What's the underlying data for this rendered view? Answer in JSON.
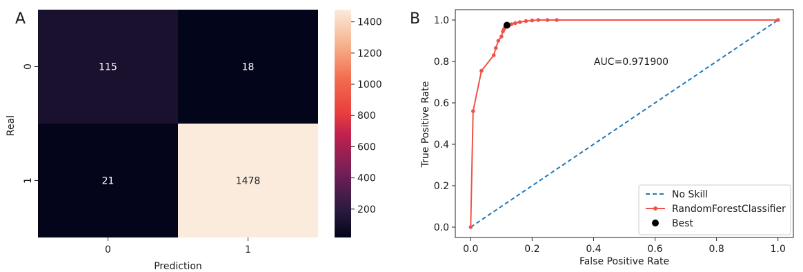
{
  "panels": {
    "a_label": "A",
    "b_label": "B"
  },
  "chart_data": [
    {
      "type": "heatmap",
      "xlabel": "Prediction",
      "ylabel": "Real",
      "x_categories": [
        "0",
        "1"
      ],
      "y_categories": [
        "0",
        "1"
      ],
      "values": [
        [
          115,
          18
        ],
        [
          21,
          1478
        ]
      ],
      "colorbar": {
        "min": 18,
        "max": 1478,
        "ticks": [
          200,
          400,
          600,
          800,
          1000,
          1200,
          1400
        ],
        "tick_labels": [
          "200",
          "400",
          "600",
          "800",
          "1000",
          "1200",
          "1400"
        ]
      },
      "colormap": "rocket",
      "colors": {
        "low": "#03051a",
        "high": "#faebdd"
      }
    },
    {
      "type": "line",
      "xlabel": "False Positive Rate",
      "ylabel": "True Positive Rate",
      "xlim": [
        -0.05,
        1.05
      ],
      "ylim": [
        -0.05,
        1.05
      ],
      "x_ticks": [
        0.0,
        0.2,
        0.4,
        0.6,
        0.8,
        1.0
      ],
      "x_tick_labels": [
        "0.0",
        "0.2",
        "0.4",
        "0.6",
        "0.8",
        "1.0"
      ],
      "y_ticks": [
        0.0,
        0.2,
        0.4,
        0.6,
        0.8,
        1.0
      ],
      "y_tick_labels": [
        "0.0",
        "0.2",
        "0.4",
        "0.6",
        "0.8",
        "1.0"
      ],
      "annotation": "AUC=0.971900",
      "legend_position": "lower-right",
      "series": [
        {
          "name": "No Skill",
          "style": "dashed",
          "color": "#1f77b4",
          "x": [
            0.0,
            1.0
          ],
          "y": [
            0.0,
            1.0
          ]
        },
        {
          "name": "RandomForestClassifier",
          "style": "solid-markers",
          "color": "#f0524a",
          "x": [
            0.0,
            0.008,
            0.035,
            0.075,
            0.082,
            0.09,
            0.1,
            0.105,
            0.108,
            0.112,
            0.118,
            0.125,
            0.133,
            0.145,
            0.16,
            0.18,
            0.2,
            0.22,
            0.25,
            0.28,
            1.0
          ],
          "y": [
            0.0,
            0.56,
            0.755,
            0.83,
            0.865,
            0.9,
            0.92,
            0.945,
            0.955,
            0.965,
            0.97,
            0.975,
            0.98,
            0.985,
            0.99,
            0.995,
            0.998,
            1.0,
            1.0,
            1.0,
            1.0
          ]
        },
        {
          "name": "Best",
          "style": "point",
          "color": "#000000",
          "x": [
            0.118
          ],
          "y": [
            0.975
          ]
        }
      ]
    }
  ]
}
